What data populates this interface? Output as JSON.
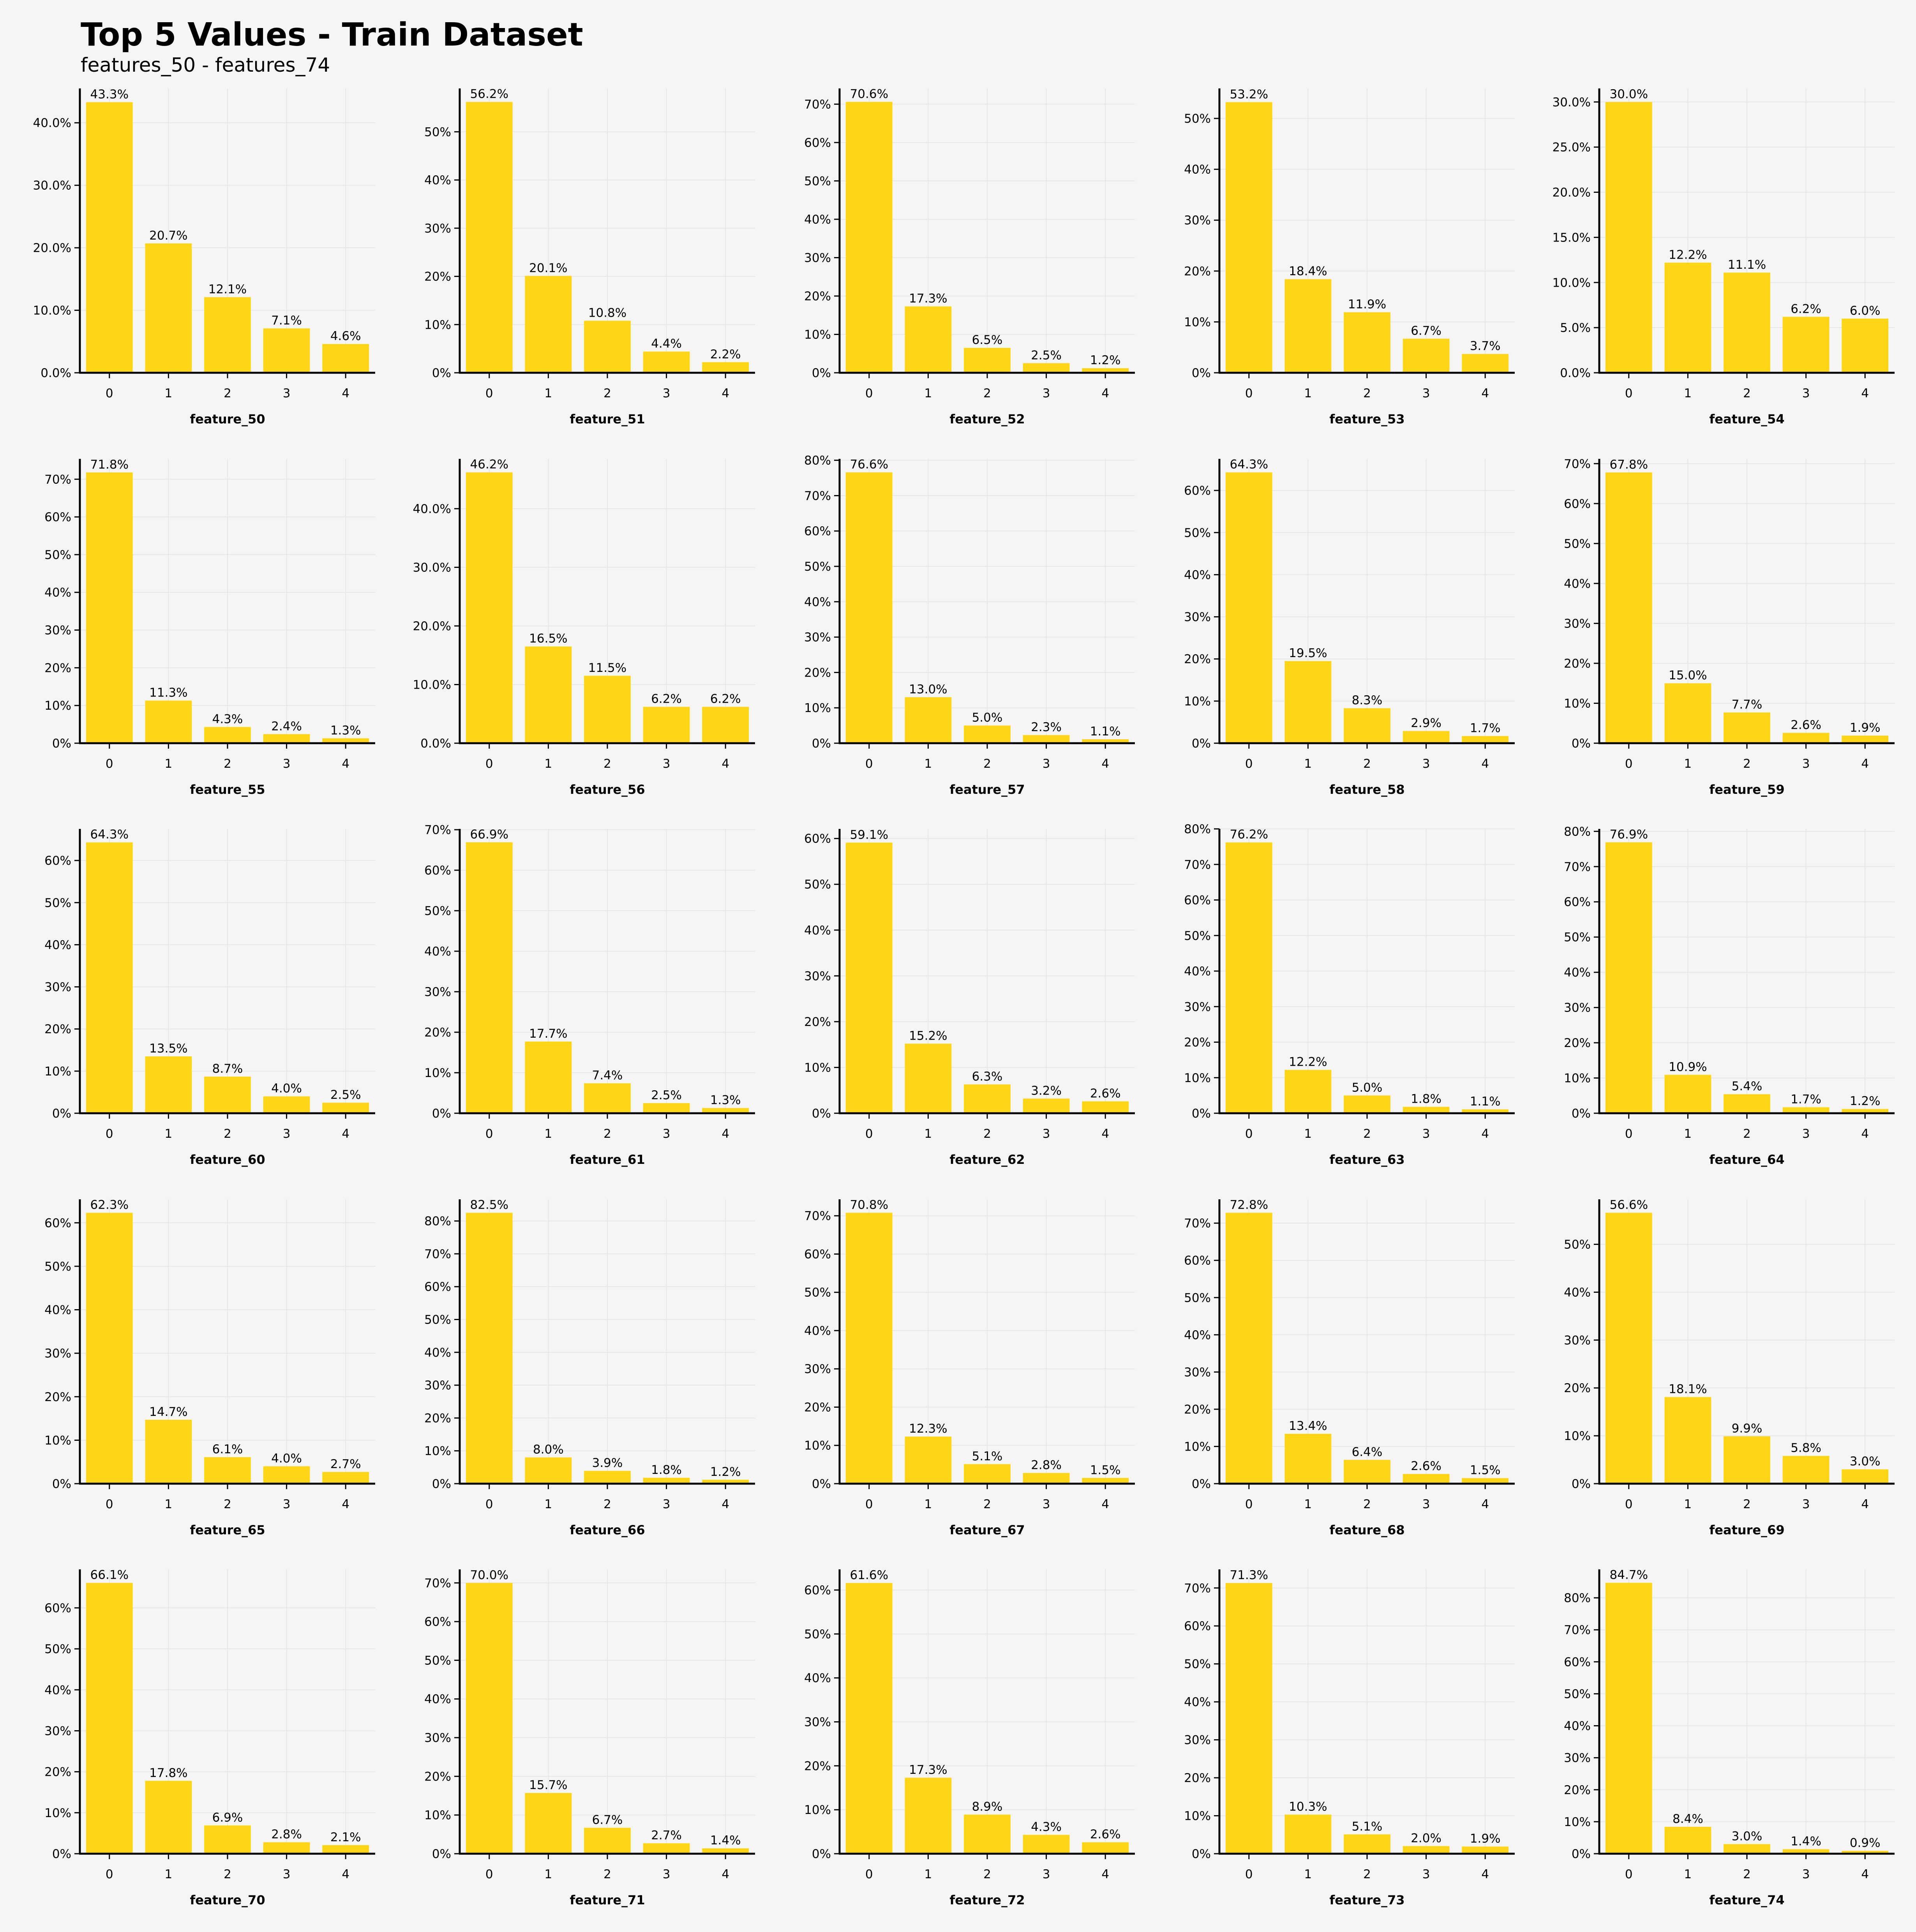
{
  "title": "Top 5 Values - Train Dataset",
  "subtitle": "features_50 - features_74",
  "colors": {
    "bar": "#ffd615",
    "axis": "#000000",
    "grid": "#e6e6e6",
    "background": "#f5f5f5"
  },
  "chart_data": [
    {
      "type": "bar",
      "xlabel": "feature_50",
      "categories": [
        "0",
        "1",
        "2",
        "3",
        "4"
      ],
      "values": [
        43.3,
        20.7,
        12.1,
        7.1,
        4.6
      ],
      "value_labels": [
        "43.3%",
        "20.7%",
        "12.1%",
        "7.1%",
        "4.6%"
      ],
      "ylim": [
        0,
        45.5
      ],
      "yticks": [
        0,
        10,
        20,
        30,
        40
      ],
      "ytick_labels": [
        "0.0%",
        "10.0%",
        "20.0%",
        "30.0%",
        "40.0%"
      ]
    },
    {
      "type": "bar",
      "xlabel": "feature_51",
      "categories": [
        "0",
        "1",
        "2",
        "3",
        "4"
      ],
      "values": [
        56.2,
        20.1,
        10.8,
        4.4,
        2.2
      ],
      "value_labels": [
        "56.2%",
        "20.1%",
        "10.8%",
        "4.4%",
        "2.2%"
      ],
      "ylim": [
        0,
        59
      ],
      "yticks": [
        0,
        10,
        20,
        30,
        40,
        50
      ],
      "ytick_labels": [
        "0%",
        "10%",
        "20%",
        "30%",
        "40%",
        "50%"
      ]
    },
    {
      "type": "bar",
      "xlabel": "feature_52",
      "categories": [
        "0",
        "1",
        "2",
        "3",
        "4"
      ],
      "values": [
        70.6,
        17.3,
        6.5,
        2.5,
        1.2
      ],
      "value_labels": [
        "70.6%",
        "17.3%",
        "6.5%",
        "2.5%",
        "1.2%"
      ],
      "ylim": [
        0,
        74.1
      ],
      "yticks": [
        0,
        10,
        20,
        30,
        40,
        50,
        60,
        70
      ],
      "ytick_labels": [
        "0%",
        "10%",
        "20%",
        "30%",
        "40%",
        "50%",
        "60%",
        "70%"
      ]
    },
    {
      "type": "bar",
      "xlabel": "feature_53",
      "categories": [
        "0",
        "1",
        "2",
        "3",
        "4"
      ],
      "values": [
        53.2,
        18.4,
        11.9,
        6.7,
        3.7
      ],
      "value_labels": [
        "53.2%",
        "18.4%",
        "11.9%",
        "6.7%",
        "3.7%"
      ],
      "ylim": [
        0,
        55.9
      ],
      "yticks": [
        0,
        10,
        20,
        30,
        40,
        50
      ],
      "ytick_labels": [
        "0%",
        "10%",
        "20%",
        "30%",
        "40%",
        "50%"
      ]
    },
    {
      "type": "bar",
      "xlabel": "feature_54",
      "categories": [
        "0",
        "1",
        "2",
        "3",
        "4"
      ],
      "values": [
        30.0,
        12.2,
        11.1,
        6.2,
        6.0
      ],
      "value_labels": [
        "30.0%",
        "12.2%",
        "11.1%",
        "6.2%",
        "6.0%"
      ],
      "ylim": [
        0,
        31.5
      ],
      "yticks": [
        0,
        5,
        10,
        15,
        20,
        25,
        30
      ],
      "ytick_labels": [
        "0.0%",
        "5.0%",
        "10.0%",
        "15.0%",
        "20.0%",
        "25.0%",
        "30.0%"
      ]
    },
    {
      "type": "bar",
      "xlabel": "feature_55",
      "categories": [
        "0",
        "1",
        "2",
        "3",
        "4"
      ],
      "values": [
        71.8,
        11.3,
        4.3,
        2.4,
        1.3
      ],
      "value_labels": [
        "71.8%",
        "11.3%",
        "4.3%",
        "2.4%",
        "1.3%"
      ],
      "ylim": [
        0,
        75.4
      ],
      "yticks": [
        0,
        10,
        20,
        30,
        40,
        50,
        60,
        70
      ],
      "ytick_labels": [
        "0%",
        "10%",
        "20%",
        "30%",
        "40%",
        "50%",
        "60%",
        "70%"
      ]
    },
    {
      "type": "bar",
      "xlabel": "feature_56",
      "categories": [
        "0",
        "1",
        "2",
        "3",
        "4"
      ],
      "values": [
        46.2,
        16.5,
        11.5,
        6.2,
        6.2
      ],
      "value_labels": [
        "46.2%",
        "16.5%",
        "11.5%",
        "6.2%",
        "6.2%"
      ],
      "ylim": [
        0,
        48.5
      ],
      "yticks": [
        0,
        10,
        20,
        30,
        40
      ],
      "ytick_labels": [
        "0.0%",
        "10.0%",
        "20.0%",
        "30.0%",
        "40.0%"
      ]
    },
    {
      "type": "bar",
      "xlabel": "feature_57",
      "categories": [
        "0",
        "1",
        "2",
        "3",
        "4"
      ],
      "values": [
        76.6,
        13.0,
        5.0,
        2.3,
        1.1
      ],
      "value_labels": [
        "76.6%",
        "13.0%",
        "5.0%",
        "2.3%",
        "1.1%"
      ],
      "ylim": [
        0,
        80.4
      ],
      "yticks": [
        0,
        10,
        20,
        30,
        40,
        50,
        60,
        70,
        80
      ],
      "ytick_labels": [
        "0%",
        "10%",
        "20%",
        "30%",
        "40%",
        "50%",
        "60%",
        "70%",
        "80%"
      ]
    },
    {
      "type": "bar",
      "xlabel": "feature_58",
      "categories": [
        "0",
        "1",
        "2",
        "3",
        "4"
      ],
      "values": [
        64.3,
        19.5,
        8.3,
        2.9,
        1.7
      ],
      "value_labels": [
        "64.3%",
        "19.5%",
        "8.3%",
        "2.9%",
        "1.7%"
      ],
      "ylim": [
        0,
        67.5
      ],
      "yticks": [
        0,
        10,
        20,
        30,
        40,
        50,
        60
      ],
      "ytick_labels": [
        "0%",
        "10%",
        "20%",
        "30%",
        "40%",
        "50%",
        "60%"
      ]
    },
    {
      "type": "bar",
      "xlabel": "feature_59",
      "categories": [
        "0",
        "1",
        "2",
        "3",
        "4"
      ],
      "values": [
        67.8,
        15.0,
        7.7,
        2.6,
        1.9
      ],
      "value_labels": [
        "67.8%",
        "15.0%",
        "7.7%",
        "2.6%",
        "1.9%"
      ],
      "ylim": [
        0,
        71.2
      ],
      "yticks": [
        0,
        10,
        20,
        30,
        40,
        50,
        60,
        70
      ],
      "ytick_labels": [
        "0%",
        "10%",
        "20%",
        "30%",
        "40%",
        "50%",
        "60%",
        "70%"
      ]
    },
    {
      "type": "bar",
      "xlabel": "feature_60",
      "categories": [
        "0",
        "1",
        "2",
        "3",
        "4"
      ],
      "values": [
        64.3,
        13.5,
        8.7,
        4.0,
        2.5
      ],
      "value_labels": [
        "64.3%",
        "13.5%",
        "8.7%",
        "4.0%",
        "2.5%"
      ],
      "ylim": [
        0,
        67.5
      ],
      "yticks": [
        0,
        10,
        20,
        30,
        40,
        50,
        60
      ],
      "ytick_labels": [
        "0%",
        "10%",
        "20%",
        "30%",
        "40%",
        "50%",
        "60%"
      ]
    },
    {
      "type": "bar",
      "xlabel": "feature_61",
      "categories": [
        "0",
        "1",
        "2",
        "3",
        "4"
      ],
      "values": [
        66.9,
        17.7,
        7.4,
        2.5,
        1.3
      ],
      "value_labels": [
        "66.9%",
        "17.7%",
        "7.4%",
        "2.5%",
        "1.3%"
      ],
      "ylim": [
        0,
        70.2
      ],
      "yticks": [
        0,
        10,
        20,
        30,
        40,
        50,
        60,
        70
      ],
      "ytick_labels": [
        "0%",
        "10%",
        "20%",
        "30%",
        "40%",
        "50%",
        "60%",
        "70%"
      ]
    },
    {
      "type": "bar",
      "xlabel": "feature_62",
      "categories": [
        "0",
        "1",
        "2",
        "3",
        "4"
      ],
      "values": [
        59.1,
        15.2,
        6.3,
        3.2,
        2.6
      ],
      "value_labels": [
        "59.1%",
        "15.2%",
        "6.3%",
        "3.2%",
        "2.6%"
      ],
      "ylim": [
        0,
        62.1
      ],
      "yticks": [
        0,
        10,
        20,
        30,
        40,
        50,
        60
      ],
      "ytick_labels": [
        "0%",
        "10%",
        "20%",
        "30%",
        "40%",
        "50%",
        "60%"
      ]
    },
    {
      "type": "bar",
      "xlabel": "feature_63",
      "categories": [
        "0",
        "1",
        "2",
        "3",
        "4"
      ],
      "values": [
        76.2,
        12.2,
        5.0,
        1.8,
        1.1
      ],
      "value_labels": [
        "76.2%",
        "12.2%",
        "5.0%",
        "1.8%",
        "1.1%"
      ],
      "ylim": [
        0,
        80
      ],
      "yticks": [
        0,
        10,
        20,
        30,
        40,
        50,
        60,
        70,
        80
      ],
      "ytick_labels": [
        "0%",
        "10%",
        "20%",
        "30%",
        "40%",
        "50%",
        "60%",
        "70%",
        "80%"
      ]
    },
    {
      "type": "bar",
      "xlabel": "feature_64",
      "categories": [
        "0",
        "1",
        "2",
        "3",
        "4"
      ],
      "values": [
        76.9,
        10.9,
        5.4,
        1.7,
        1.2
      ],
      "value_labels": [
        "76.9%",
        "10.9%",
        "5.4%",
        "1.7%",
        "1.2%"
      ],
      "ylim": [
        0,
        80.7
      ],
      "yticks": [
        0,
        10,
        20,
        30,
        40,
        50,
        60,
        70,
        80
      ],
      "ytick_labels": [
        "0%",
        "10%",
        "20%",
        "30%",
        "40%",
        "50%",
        "60%",
        "70%",
        "80%"
      ]
    },
    {
      "type": "bar",
      "xlabel": "feature_65",
      "categories": [
        "0",
        "1",
        "2",
        "3",
        "4"
      ],
      "values": [
        62.3,
        14.7,
        6.1,
        4.0,
        2.7
      ],
      "value_labels": [
        "62.3%",
        "14.7%",
        "6.1%",
        "4.0%",
        "2.7%"
      ],
      "ylim": [
        0,
        65.4
      ],
      "yticks": [
        0,
        10,
        20,
        30,
        40,
        50,
        60
      ],
      "ytick_labels": [
        "0%",
        "10%",
        "20%",
        "30%",
        "40%",
        "50%",
        "60%"
      ]
    },
    {
      "type": "bar",
      "xlabel": "feature_66",
      "categories": [
        "0",
        "1",
        "2",
        "3",
        "4"
      ],
      "values": [
        82.5,
        8.0,
        3.9,
        1.8,
        1.2
      ],
      "value_labels": [
        "82.5%",
        "8.0%",
        "3.9%",
        "1.8%",
        "1.2%"
      ],
      "ylim": [
        0,
        86.6
      ],
      "yticks": [
        0,
        10,
        20,
        30,
        40,
        50,
        60,
        70,
        80
      ],
      "ytick_labels": [
        "0%",
        "10%",
        "20%",
        "30%",
        "40%",
        "50%",
        "60%",
        "70%",
        "80%"
      ]
    },
    {
      "type": "bar",
      "xlabel": "feature_67",
      "categories": [
        "0",
        "1",
        "2",
        "3",
        "4"
      ],
      "values": [
        70.8,
        12.3,
        5.1,
        2.8,
        1.5
      ],
      "value_labels": [
        "70.8%",
        "12.3%",
        "5.1%",
        "2.8%",
        "1.5%"
      ],
      "ylim": [
        0,
        74.3
      ],
      "yticks": [
        0,
        10,
        20,
        30,
        40,
        50,
        60,
        70
      ],
      "ytick_labels": [
        "0%",
        "10%",
        "20%",
        "30%",
        "40%",
        "50%",
        "60%",
        "70%"
      ]
    },
    {
      "type": "bar",
      "xlabel": "feature_68",
      "categories": [
        "0",
        "1",
        "2",
        "3",
        "4"
      ],
      "values": [
        72.8,
        13.4,
        6.4,
        2.6,
        1.5
      ],
      "value_labels": [
        "72.8%",
        "13.4%",
        "6.4%",
        "2.6%",
        "1.5%"
      ],
      "ylim": [
        0,
        76.4
      ],
      "yticks": [
        0,
        10,
        20,
        30,
        40,
        50,
        60,
        70
      ],
      "ytick_labels": [
        "0%",
        "10%",
        "20%",
        "30%",
        "40%",
        "50%",
        "60%",
        "70%"
      ]
    },
    {
      "type": "bar",
      "xlabel": "feature_69",
      "categories": [
        "0",
        "1",
        "2",
        "3",
        "4"
      ],
      "values": [
        56.6,
        18.1,
        9.9,
        5.8,
        3.0
      ],
      "value_labels": [
        "56.6%",
        "18.1%",
        "9.9%",
        "5.8%",
        "3.0%"
      ],
      "ylim": [
        0,
        59.4
      ],
      "yticks": [
        0,
        10,
        20,
        30,
        40,
        50
      ],
      "ytick_labels": [
        "0%",
        "10%",
        "20%",
        "30%",
        "40%",
        "50%"
      ]
    },
    {
      "type": "bar",
      "xlabel": "feature_70",
      "categories": [
        "0",
        "1",
        "2",
        "3",
        "4"
      ],
      "values": [
        66.1,
        17.8,
        6.9,
        2.8,
        2.1
      ],
      "value_labels": [
        "66.1%",
        "17.8%",
        "6.9%",
        "2.8%",
        "2.1%"
      ],
      "ylim": [
        0,
        69.4
      ],
      "yticks": [
        0,
        10,
        20,
        30,
        40,
        50,
        60
      ],
      "ytick_labels": [
        "0%",
        "10%",
        "20%",
        "30%",
        "40%",
        "50%",
        "60%"
      ]
    },
    {
      "type": "bar",
      "xlabel": "feature_71",
      "categories": [
        "0",
        "1",
        "2",
        "3",
        "4"
      ],
      "values": [
        70.0,
        15.7,
        6.7,
        2.7,
        1.4
      ],
      "value_labels": [
        "70.0%",
        "15.7%",
        "6.7%",
        "2.7%",
        "1.4%"
      ],
      "ylim": [
        0,
        73.5
      ],
      "yticks": [
        0,
        10,
        20,
        30,
        40,
        50,
        60,
        70
      ],
      "ytick_labels": [
        "0%",
        "10%",
        "20%",
        "30%",
        "40%",
        "50%",
        "60%",
        "70%"
      ]
    },
    {
      "type": "bar",
      "xlabel": "feature_72",
      "categories": [
        "0",
        "1",
        "2",
        "3",
        "4"
      ],
      "values": [
        61.6,
        17.3,
        8.9,
        4.3,
        2.6
      ],
      "value_labels": [
        "61.6%",
        "17.3%",
        "8.9%",
        "4.3%",
        "2.6%"
      ],
      "ylim": [
        0,
        64.7
      ],
      "yticks": [
        0,
        10,
        20,
        30,
        40,
        50,
        60
      ],
      "ytick_labels": [
        "0%",
        "10%",
        "20%",
        "30%",
        "40%",
        "50%",
        "60%"
      ]
    },
    {
      "type": "bar",
      "xlabel": "feature_73",
      "categories": [
        "0",
        "1",
        "2",
        "3",
        "4"
      ],
      "values": [
        71.3,
        10.3,
        5.1,
        2.0,
        1.9
      ],
      "value_labels": [
        "71.3%",
        "10.3%",
        "5.1%",
        "2.0%",
        "1.9%"
      ],
      "ylim": [
        0,
        74.9
      ],
      "yticks": [
        0,
        10,
        20,
        30,
        40,
        50,
        60,
        70
      ],
      "ytick_labels": [
        "0%",
        "10%",
        "20%",
        "30%",
        "40%",
        "50%",
        "60%",
        "70%"
      ]
    },
    {
      "type": "bar",
      "xlabel": "feature_74",
      "categories": [
        "0",
        "1",
        "2",
        "3",
        "4"
      ],
      "values": [
        84.7,
        8.4,
        3.0,
        1.4,
        0.9
      ],
      "value_labels": [
        "84.7%",
        "8.4%",
        "3.0%",
        "1.4%",
        "0.9%"
      ],
      "ylim": [
        0,
        88.9
      ],
      "yticks": [
        0,
        10,
        20,
        30,
        40,
        50,
        60,
        70,
        80
      ],
      "ytick_labels": [
        "0%",
        "10%",
        "20%",
        "30%",
        "40%",
        "50%",
        "60%",
        "70%",
        "80%"
      ]
    }
  ]
}
